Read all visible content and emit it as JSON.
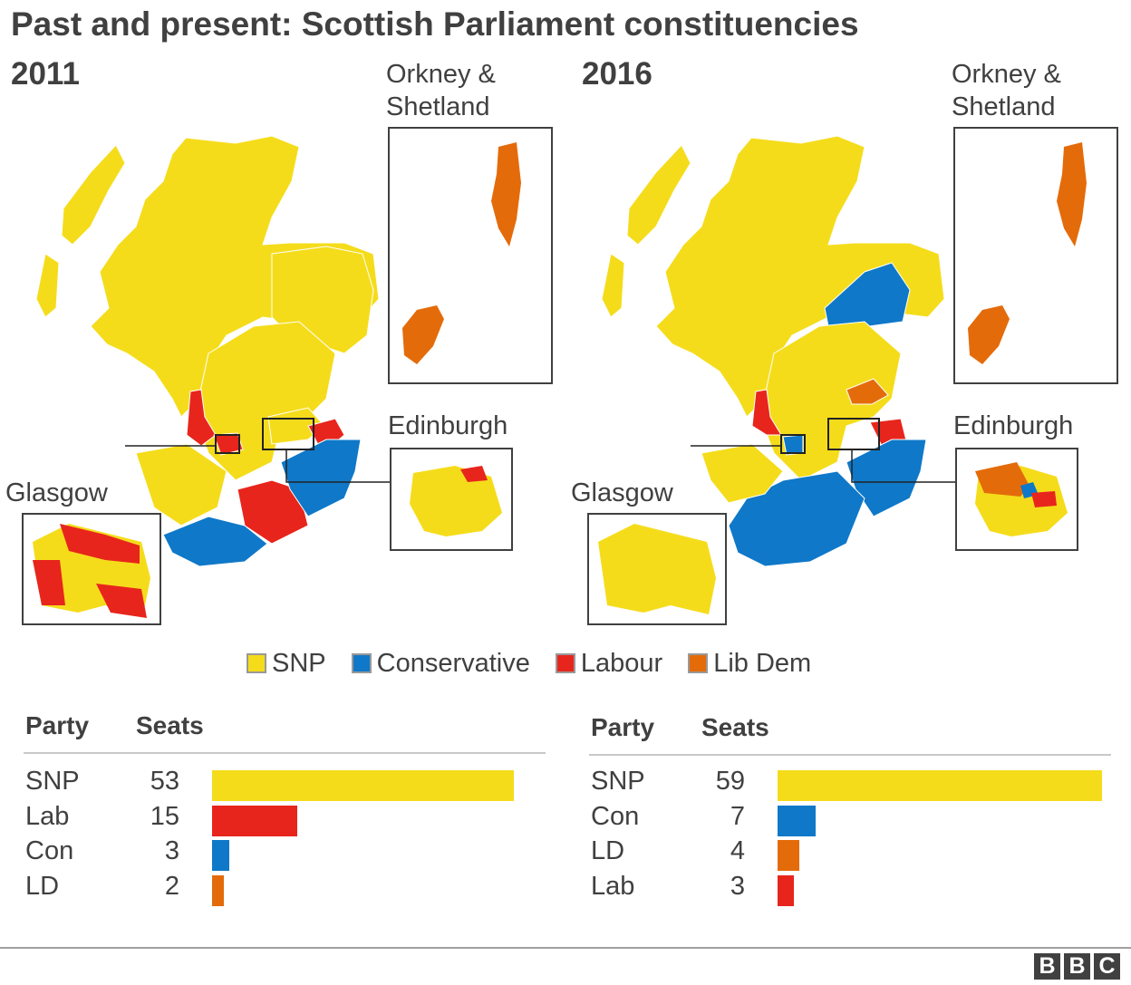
{
  "title": "Past and present: Scottish Parliament constituencies",
  "colors": {
    "snp": "#f5dc1b",
    "con": "#0f78c8",
    "lab": "#e8251c",
    "ld": "#e46b0a"
  },
  "maps": [
    {
      "year": "2011",
      "inset_labels": {
        "orkney": "Orkney &",
        "shetland": "Shetland",
        "edinburgh": "Edinburgh",
        "glasgow": "Glasgow"
      },
      "regions": {
        "highlands": "SNP",
        "aberdeenshire": "SNP",
        "central": "SNP",
        "ayrshire": "SNP",
        "west_coast": "Labour",
        "dumfries": "Conservative",
        "borders": "Conservative",
        "lanark": "Labour",
        "east_lothian": "Labour",
        "fife_ne": "SNP",
        "northern_isles": "Lib Dem"
      }
    },
    {
      "year": "2016",
      "inset_labels": {
        "orkney": "Orkney &",
        "shetland": "Shetland",
        "edinburgh": "Edinburgh",
        "glasgow": "Glasgow"
      },
      "regions": {
        "highlands": "SNP",
        "aberdeenshire": "Conservative",
        "central": "SNP",
        "ayrshire": "SNP",
        "west_coast": "Labour",
        "dumfries": "Conservative",
        "borders": "Conservative",
        "lanark": "Conservative",
        "east_lothian": "Labour",
        "fife_ne": "Lib Dem",
        "northern_isles": "Lib Dem"
      }
    }
  ],
  "legend": [
    {
      "label": "SNP",
      "color": "#f5dc1b"
    },
    {
      "label": "Conservative",
      "color": "#0f78c8"
    },
    {
      "label": "Labour",
      "color": "#e8251c"
    },
    {
      "label": "Lib Dem",
      "color": "#e46b0a"
    }
  ],
  "chart_data": [
    {
      "type": "bar",
      "xlabel": "Seats",
      "ylabel": "Party",
      "categories": [
        "SNP",
        "Lab",
        "Con",
        "LD"
      ],
      "values": [
        53,
        15,
        3,
        2
      ],
      "colors": [
        "#f5dc1b",
        "#e8251c",
        "#0f78c8",
        "#e46b0a"
      ],
      "xlim": [
        0,
        53
      ]
    },
    {
      "type": "bar",
      "xlabel": "Seats",
      "ylabel": "Party",
      "categories": [
        "SNP",
        "Con",
        "LD",
        "Lab"
      ],
      "values": [
        59,
        7,
        4,
        3
      ],
      "colors": [
        "#f5dc1b",
        "#0f78c8",
        "#e46b0a",
        "#e8251c"
      ],
      "xlim": [
        0,
        59
      ]
    }
  ],
  "table_headers": {
    "party": "Party",
    "seats": "Seats"
  },
  "branding": {
    "letters": [
      "B",
      "B",
      "C"
    ]
  }
}
